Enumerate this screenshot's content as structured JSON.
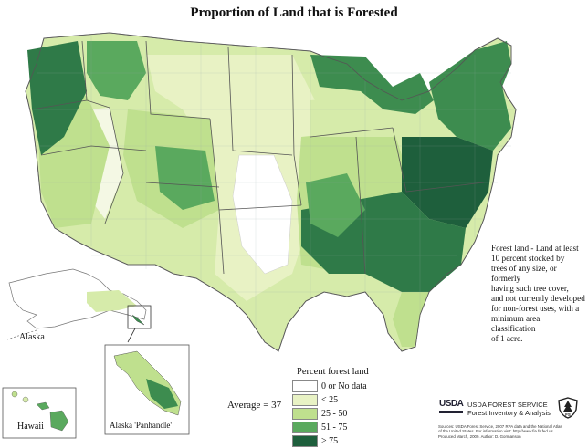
{
  "map": {
    "title": "Proportion of Land that is Forested",
    "average_label": "Average = 37",
    "legend": {
      "title": "Percent forest land",
      "classes": [
        {
          "label": "0 or No data",
          "color": "#ffffff"
        },
        {
          "label": "< 25",
          "color": "#e8f2c4"
        },
        {
          "label": "25 - 50",
          "color": "#bfe08e"
        },
        {
          "label": "51 - 75",
          "color": "#5aa95e"
        },
        {
          "label": "> 75",
          "color": "#1e5f3c"
        }
      ]
    },
    "definition_note": [
      "Forest land - Land at least",
      "10 percent stocked by",
      "trees of any size, or formerly",
      "having such tree cover,",
      "and not currently developed",
      "for non-forest uses, with a",
      "minimum area classification",
      "of 1 acre."
    ],
    "inset_labels": {
      "alaska": "Alaska",
      "hawaii": "Hawaii",
      "panhandle": "Alaska 'Panhandle'"
    },
    "agency": {
      "logo_text": "USDA",
      "line1": "USDA FOREST SERVICE",
      "line2": "Forest Inventory & Analysis"
    },
    "sources": [
      "Sources: USDA Forest Service, 2007 RPA data and the National Atlas",
      "of the United States. For information visit: http://www.fia.fs.fed.us",
      "Produced March, 2009. Author: D. Gormanson"
    ],
    "shield_text": "FS"
  }
}
